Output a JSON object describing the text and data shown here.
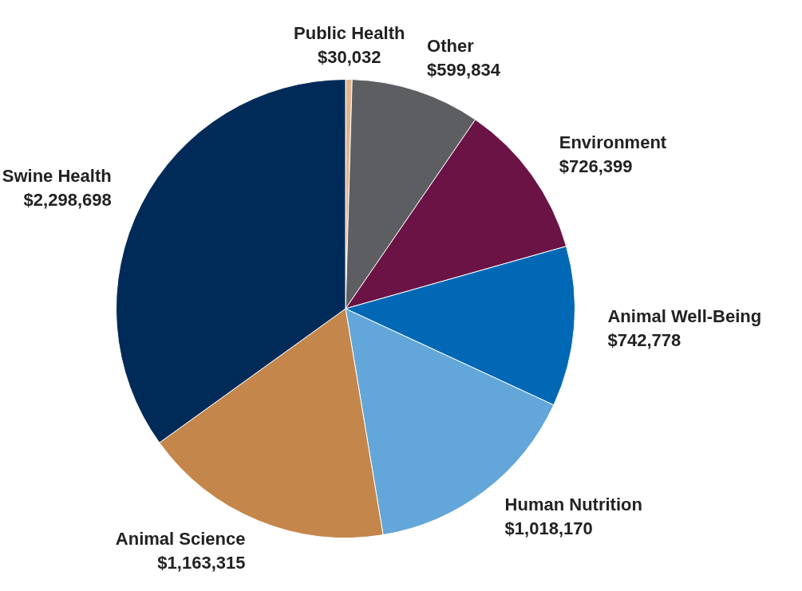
{
  "chart_data": {
    "type": "pie",
    "categories": [
      "Public Health",
      "Other",
      "Environment",
      "Animal Well-Being",
      "Human Nutrition",
      "Animal Science",
      "Swine Health"
    ],
    "values": [
      30032,
      599834,
      726399,
      742778,
      1018170,
      1163315,
      2298698
    ],
    "value_labels": [
      "$30,032",
      "$599,834",
      "$726,399",
      "$742,778",
      "$1,018,170",
      "$1,163,315",
      "$2,298,698"
    ],
    "colors": [
      "#e2b48c",
      "#5d5e62",
      "#6b1345",
      "#0068b4",
      "#62a6da",
      "#c4864a",
      "#002b58"
    ],
    "legend": false
  }
}
